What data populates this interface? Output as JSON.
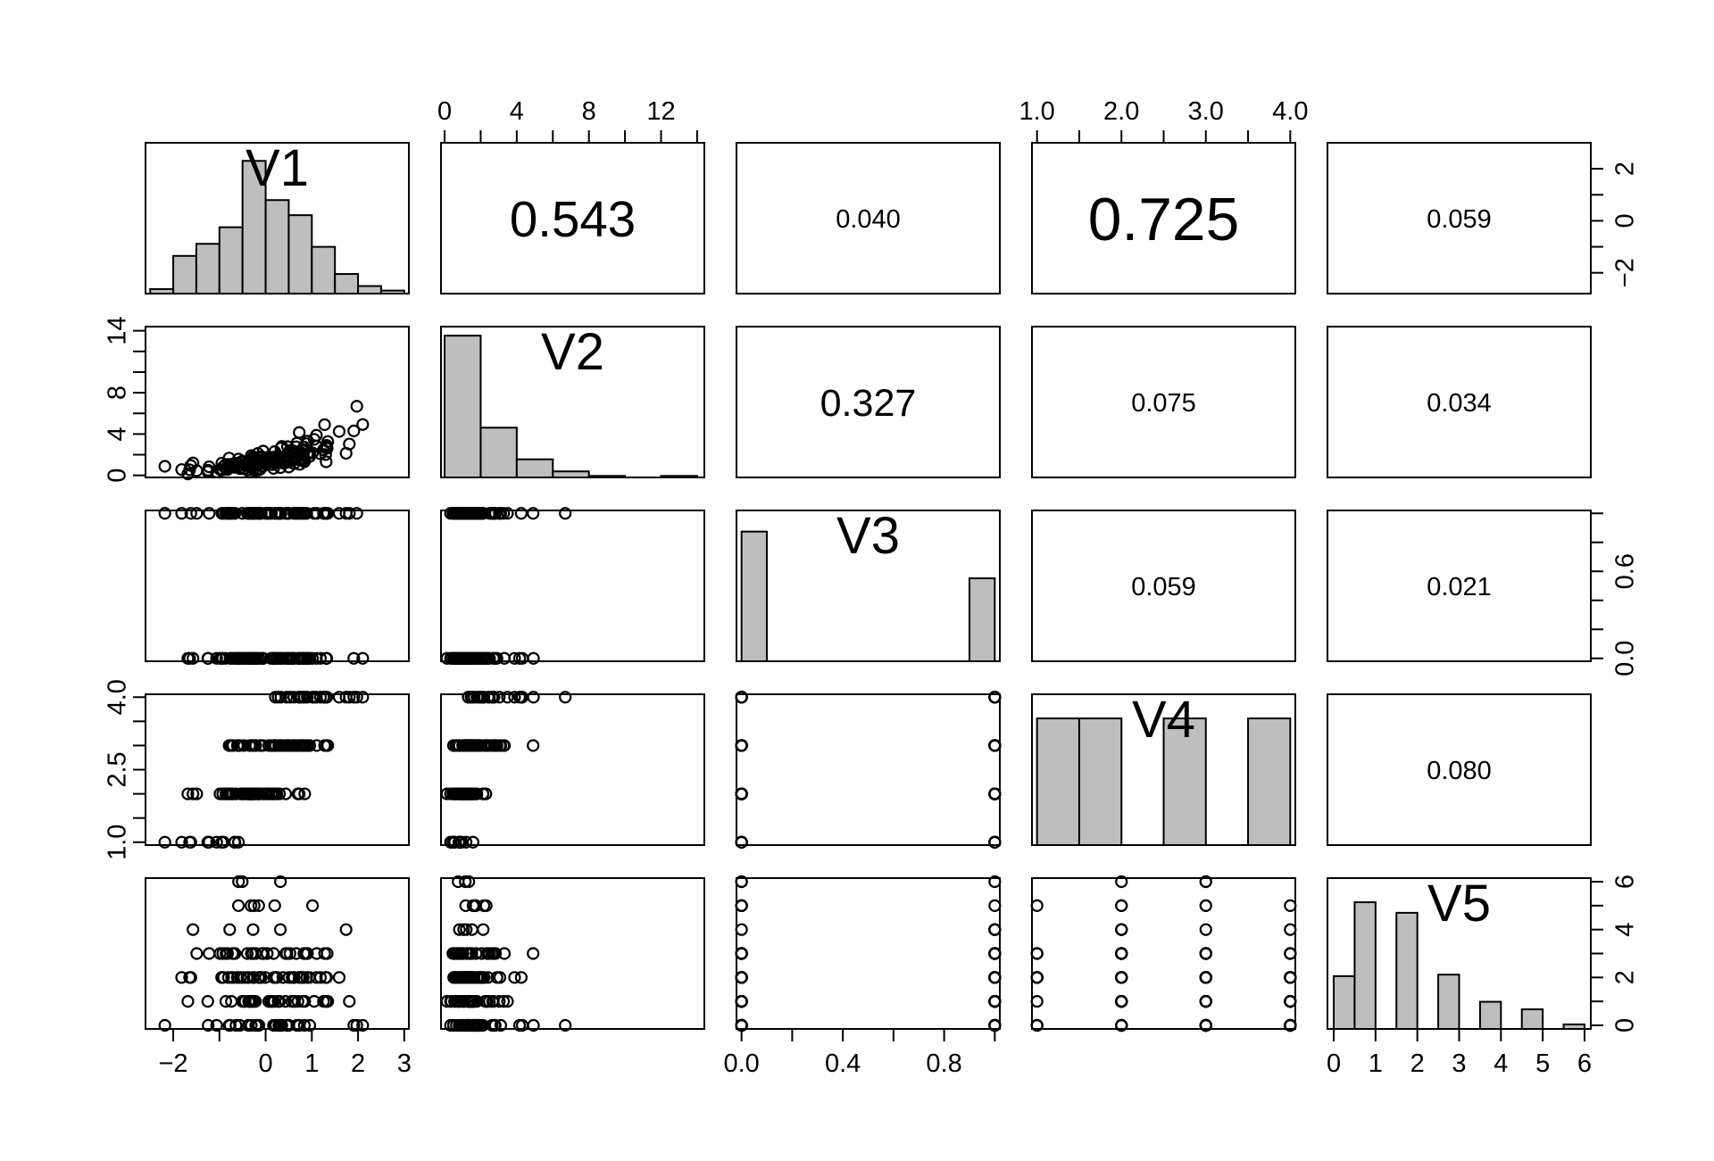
{
  "chart_data": {
    "type": "scatter-matrix",
    "variables": [
      "V1",
      "V2",
      "V3",
      "V4",
      "V5"
    ],
    "correlations": [
      {
        "row": 0,
        "col": 1,
        "text": "0.543",
        "value": 0.543
      },
      {
        "row": 0,
        "col": 2,
        "text": "0.040",
        "value": 0.04
      },
      {
        "row": 0,
        "col": 3,
        "text": "0.725",
        "value": 0.725
      },
      {
        "row": 0,
        "col": 4,
        "text": "0.059",
        "value": 0.059
      },
      {
        "row": 1,
        "col": 2,
        "text": "0.327",
        "value": 0.327
      },
      {
        "row": 1,
        "col": 3,
        "text": "0.075",
        "value": 0.075
      },
      {
        "row": 1,
        "col": 4,
        "text": "0.034",
        "value": 0.034
      },
      {
        "row": 2,
        "col": 3,
        "text": "0.059",
        "value": 0.059
      },
      {
        "row": 2,
        "col": 4,
        "text": "0.021",
        "value": 0.021
      },
      {
        "row": 3,
        "col": 4,
        "text": "0.080",
        "value": 0.08
      }
    ],
    "histograms": {
      "V1": {
        "breaks": [
          -2.5,
          -2,
          -1.5,
          -1,
          -0.5,
          0,
          0.5,
          1,
          1.5,
          2,
          2.5,
          3
        ],
        "heights": [
          0.03,
          0.25,
          0.33,
          0.44,
          0.88,
          0.62,
          0.52,
          0.31,
          0.13,
          0.05,
          0.02
        ]
      },
      "V2": {
        "breaks": [
          0,
          2,
          4,
          6,
          8,
          10,
          12,
          14
        ],
        "heights": [
          0.94,
          0.33,
          0.12,
          0.04,
          0.01,
          0.0,
          0.01
        ]
      },
      "V3": {
        "breaks": [
          0,
          0.1,
          0.9,
          1.0
        ],
        "heights": [
          0.86,
          0,
          0.55
        ]
      },
      "V4": {
        "breaks": [
          1.0,
          1.5,
          2.0,
          2.5,
          3.0,
          3.5,
          4.0
        ],
        "heights": [
          0.84,
          0.84,
          0,
          0.84,
          0,
          0.84
        ]
      },
      "V5": {
        "breaks": [
          0,
          0.5,
          1,
          1.5,
          2,
          2.5,
          3,
          3.5,
          4,
          4.5,
          5,
          5.5,
          6
        ],
        "heights": [
          0.35,
          0.84,
          0,
          0.77,
          0,
          0.36,
          0,
          0.18,
          0,
          0.13,
          0,
          0.03
        ]
      }
    },
    "axes": {
      "V1": {
        "range": [
          -2.6,
          3.1
        ],
        "ticks": [
          -2,
          -1,
          0,
          1,
          2,
          3
        ],
        "labels": [
          "-2",
          "0",
          "1",
          "2",
          "3"
        ],
        "label_values": [
          -2,
          0,
          1,
          2,
          3
        ]
      },
      "V2": {
        "range": [
          -0.2,
          14.4
        ],
        "ticks": [
          0,
          2,
          4,
          6,
          8,
          10,
          12,
          14
        ],
        "labels": [
          "0",
          "4",
          "8",
          "12"
        ],
        "label_values": [
          0,
          4,
          8,
          12
        ],
        "left_labels": [
          "0",
          "4",
          "8",
          "14"
        ],
        "left_label_values": [
          0,
          4,
          8,
          14
        ]
      },
      "V3": {
        "range": [
          -0.02,
          1.02
        ],
        "ticks": [
          0,
          0.2,
          0.4,
          0.6,
          0.8,
          1.0
        ],
        "labels": [
          "0.0",
          "0.4",
          "0.8"
        ],
        "label_values": [
          0,
          0.4,
          0.8
        ],
        "right_labels": [
          "0.0",
          "0.6"
        ],
        "right_label_values": [
          0,
          0.6
        ]
      },
      "V4": {
        "range": [
          0.94,
          4.06
        ],
        "ticks": [
          1.0,
          1.5,
          2.0,
          2.5,
          3.0,
          3.5,
          4.0
        ],
        "labels": [
          "1.0",
          "2.0",
          "3.0",
          "4.0"
        ],
        "label_values": [
          1,
          2,
          3,
          4
        ],
        "left_labels": [
          "1.0",
          "2.5",
          "4.0"
        ],
        "left_label_values": [
          1,
          2.5,
          4
        ]
      },
      "V5": {
        "range": [
          -0.15,
          6.15
        ],
        "ticks": [
          0,
          1,
          2,
          3,
          4,
          5,
          6
        ],
        "labels": [
          "0",
          "1",
          "2",
          "3",
          "4",
          "5",
          "6"
        ],
        "label_values": [
          0,
          1,
          2,
          3,
          4,
          5,
          6
        ],
        "right_labels": [
          "0",
          "2",
          "4",
          "6"
        ],
        "right_label_values": [
          0,
          2,
          4,
          6
        ]
      }
    },
    "v1_right_axis": {
      "range": [
        -2.8,
        3.0
      ],
      "ticks": [
        -2,
        -1,
        0,
        1,
        2
      ],
      "labels": [
        "-2",
        "0",
        "2"
      ],
      "label_values": [
        -2,
        0,
        2
      ]
    }
  }
}
